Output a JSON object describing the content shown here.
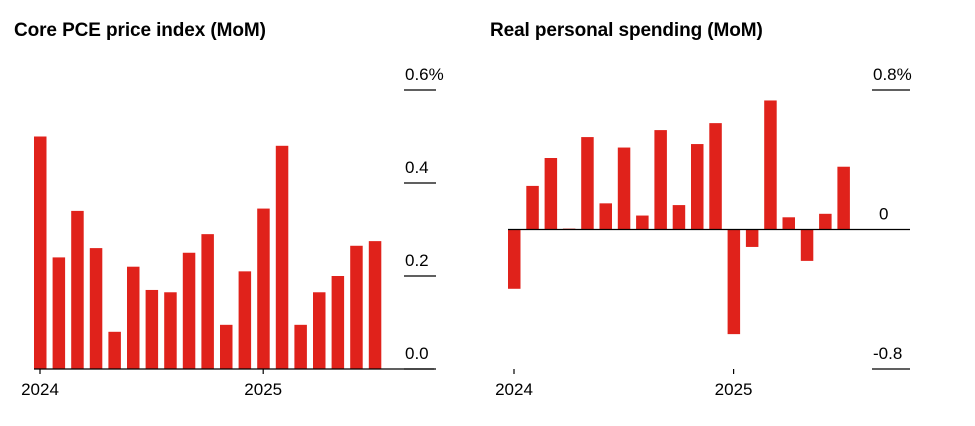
{
  "colors": {
    "bar": "#e0221b",
    "axis": "#000000",
    "background": "#ffffff"
  },
  "chart_data": [
    {
      "type": "bar",
      "title": "Core PCE price index (MoM)",
      "xlabel": "",
      "ylabel": "",
      "x_tick_labels": [
        "2024",
        "2025"
      ],
      "y_tick_labels": [
        "0.6%",
        "0.4",
        "0.2",
        "0.0"
      ],
      "y_ticks": [
        0.6,
        0.4,
        0.2,
        0.0
      ],
      "ylim": [
        0,
        0.6
      ],
      "grid": false,
      "categories": [
        "2024-01",
        "2024-02",
        "2024-03",
        "2024-04",
        "2024-05",
        "2024-06",
        "2024-07",
        "2024-08",
        "2024-09",
        "2024-10",
        "2024-11",
        "2024-12",
        "2025-01",
        "2025-02",
        "2025-03",
        "2025-04",
        "2025-05",
        "2025-06",
        "2025-07"
      ],
      "values": [
        0.5,
        0.24,
        0.34,
        0.26,
        0.08,
        0.22,
        0.17,
        0.165,
        0.25,
        0.29,
        0.095,
        0.21,
        0.345,
        0.48,
        0.095,
        0.165,
        0.2,
        0.265,
        0.275
      ]
    },
    {
      "type": "bar",
      "title": "Real personal spending (MoM)",
      "xlabel": "",
      "ylabel": "",
      "x_tick_labels": [
        "2024",
        "2025"
      ],
      "y_tick_labels": [
        "0.8%",
        "0",
        "-0.8"
      ],
      "y_ticks": [
        0.8,
        0,
        -0.8
      ],
      "ylim": [
        -0.8,
        0.8
      ],
      "grid": false,
      "categories": [
        "2024-01",
        "2024-02",
        "2024-03",
        "2024-04",
        "2024-05",
        "2024-06",
        "2024-07",
        "2024-08",
        "2024-09",
        "2024-10",
        "2024-11",
        "2024-12",
        "2025-01",
        "2025-02",
        "2025-03",
        "2025-04",
        "2025-05",
        "2025-06",
        "2025-07"
      ],
      "values": [
        -0.34,
        0.25,
        0.41,
        0.005,
        0.53,
        0.15,
        0.47,
        0.08,
        0.57,
        0.14,
        0.49,
        0.61,
        -0.6,
        -0.1,
        0.74,
        0.07,
        -0.18,
        0.09,
        0.36
      ]
    }
  ]
}
